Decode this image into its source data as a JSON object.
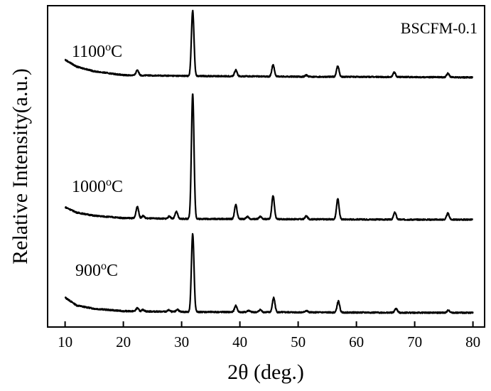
{
  "chart_data": {
    "type": "line",
    "title": "",
    "annotation": "BSCFM-0.1",
    "xlabel": "2θ (deg.)",
    "ylabel": "Relative Intensity(a.u.)",
    "xlim": [
      7,
      82
    ],
    "x_ticks": [
      10,
      20,
      30,
      40,
      50,
      60,
      70,
      80
    ],
    "y_ticks_shown": false,
    "grid": false,
    "legend": "none",
    "stacked_offset": true,
    "x_range": [
      10,
      80
    ],
    "series": [
      {
        "name": "900",
        "label_main": "900",
        "label_sup": "o",
        "label_unit": "C",
        "baseline": [
          [
            10,
            20
          ],
          [
            12,
            10
          ],
          [
            15,
            6
          ],
          [
            20,
            3
          ],
          [
            30,
            2
          ],
          [
            50,
            1.5
          ],
          [
            70,
            1
          ],
          [
            80,
            1
          ]
        ],
        "peaks": [
          [
            22.4,
            4
          ],
          [
            23.4,
            2
          ],
          [
            27.8,
            2
          ],
          [
            29.3,
            3
          ],
          [
            31.9,
            97
          ],
          [
            39.3,
            8
          ],
          [
            41.5,
            2
          ],
          [
            43.5,
            3
          ],
          [
            45.8,
            18
          ],
          [
            51.4,
            2
          ],
          [
            56.9,
            14
          ],
          [
            66.8,
            5
          ],
          [
            75.8,
            3
          ]
        ]
      },
      {
        "name": "1000",
        "label_main": "1000",
        "label_sup": "o",
        "label_unit": "C",
        "baseline": [
          [
            10,
            17
          ],
          [
            12,
            10
          ],
          [
            15,
            6
          ],
          [
            20,
            3
          ],
          [
            30,
            2
          ],
          [
            50,
            1.5
          ],
          [
            70,
            1
          ],
          [
            80,
            1
          ]
        ],
        "peaks": [
          [
            22.4,
            15
          ],
          [
            23.4,
            3
          ],
          [
            27.9,
            3
          ],
          [
            29.1,
            9
          ],
          [
            31.9,
            160
          ],
          [
            39.3,
            18
          ],
          [
            41.3,
            3
          ],
          [
            43.5,
            3
          ],
          [
            45.7,
            30
          ],
          [
            51.4,
            4
          ],
          [
            56.8,
            26
          ],
          [
            66.6,
            9
          ],
          [
            75.7,
            8
          ]
        ]
      },
      {
        "name": "1100",
        "label_main": "1100",
        "label_sup": "o",
        "label_unit": "C",
        "baseline": [
          [
            10,
            24
          ],
          [
            12,
            15
          ],
          [
            15,
            9
          ],
          [
            20,
            4
          ],
          [
            30,
            3
          ],
          [
            50,
            2
          ],
          [
            70,
            1.5
          ],
          [
            80,
            1
          ]
        ],
        "peaks": [
          [
            22.4,
            7
          ],
          [
            31.9,
            85
          ],
          [
            39.3,
            8
          ],
          [
            45.7,
            15
          ],
          [
            51.4,
            2
          ],
          [
            56.8,
            14
          ],
          [
            66.5,
            6
          ],
          [
            75.7,
            5
          ]
        ]
      }
    ]
  }
}
